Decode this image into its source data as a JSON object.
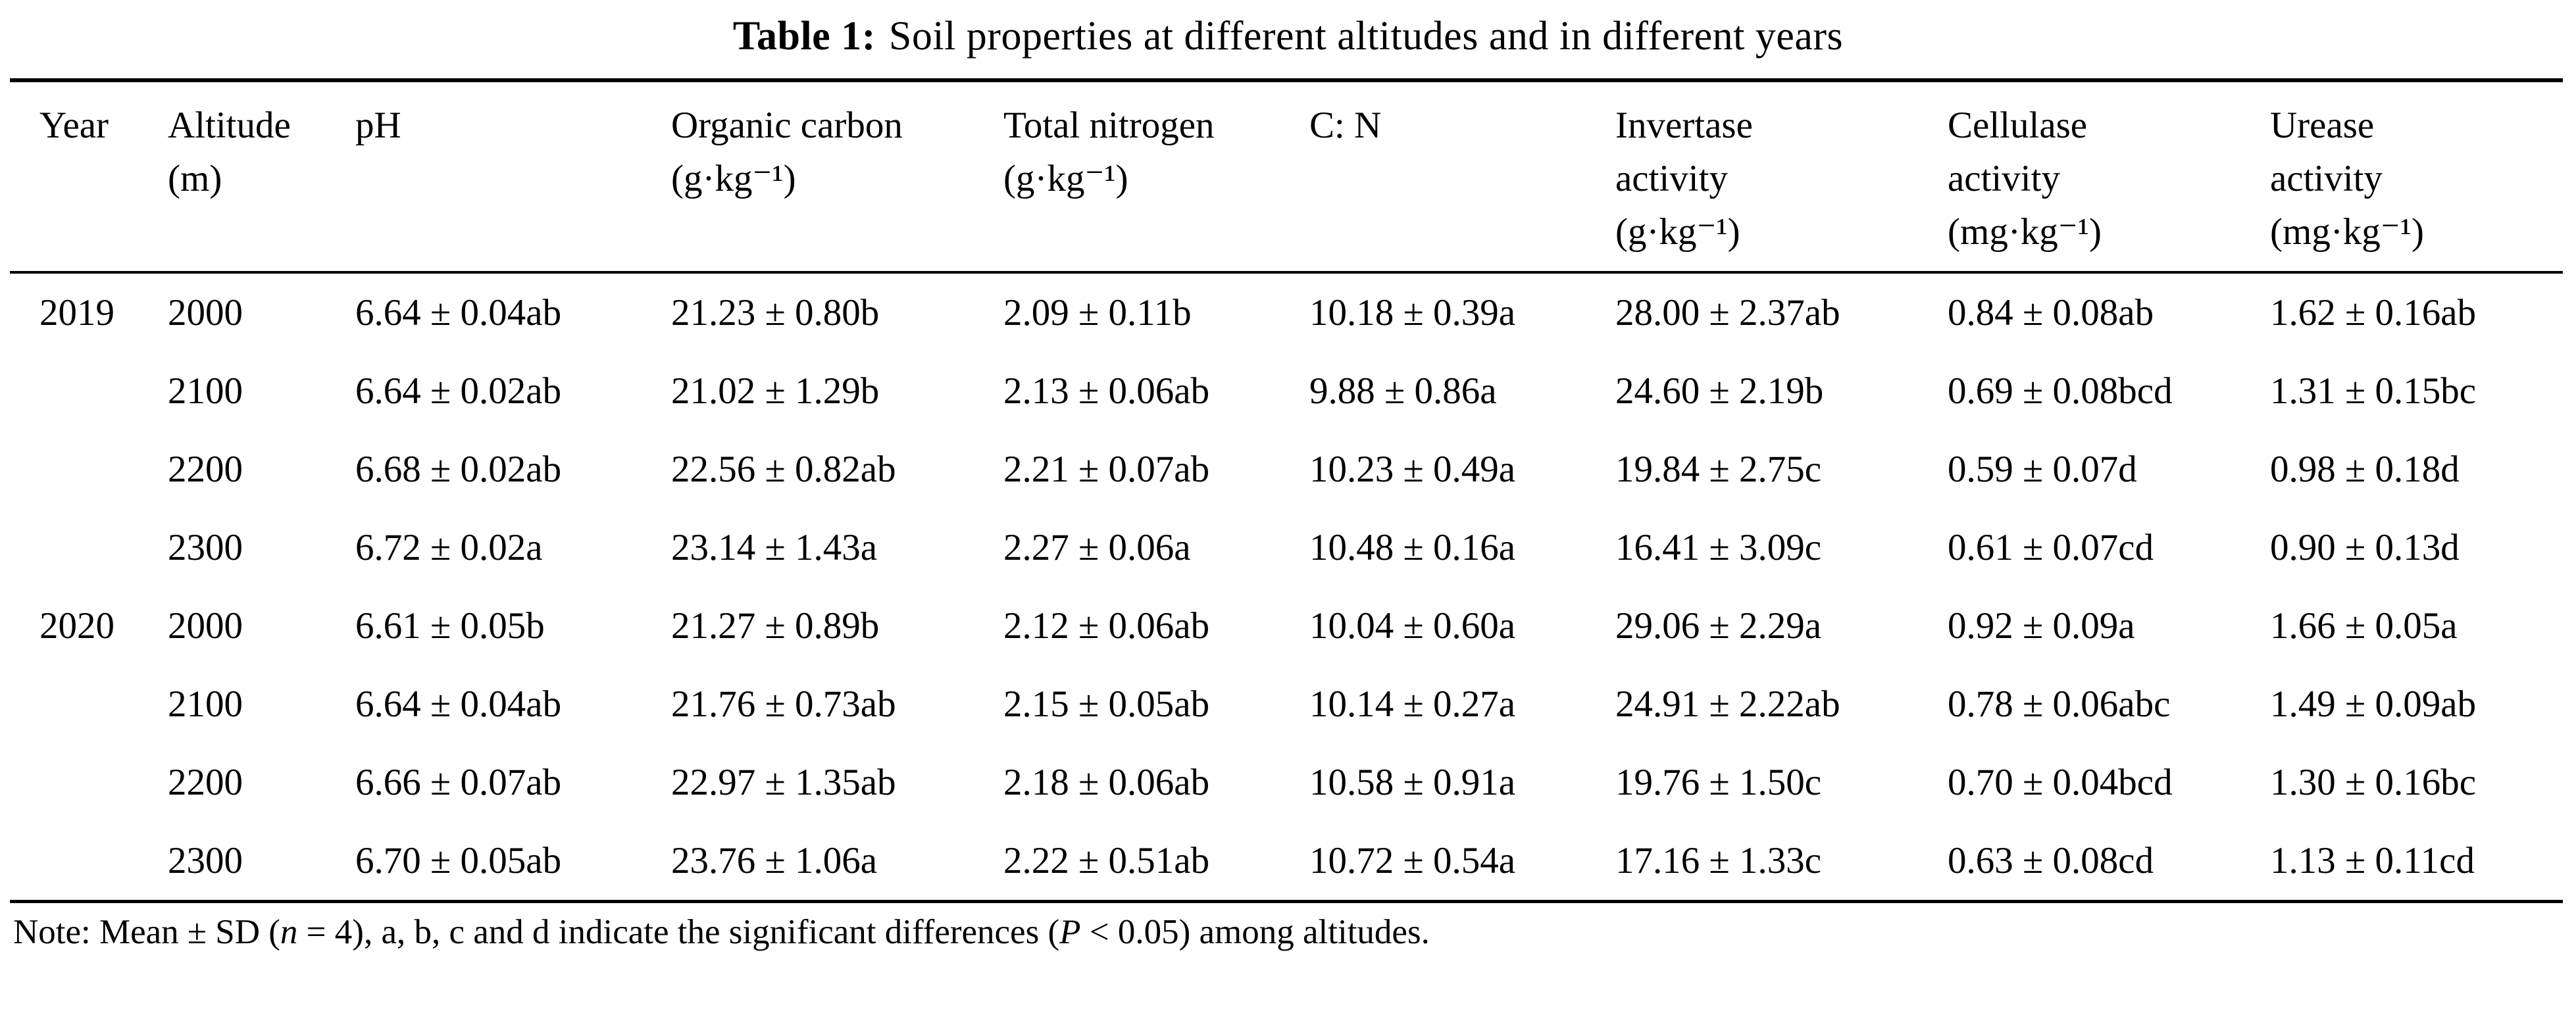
{
  "page": {
    "background_color": "#ffffff",
    "text_color": "#000000",
    "rule_color": "#000000"
  },
  "table": {
    "title_label": "Table 1:",
    "title_text": "Soil properties at different altitudes and in different years",
    "columns": [
      {
        "key": "year",
        "label": "Year"
      },
      {
        "key": "altitude",
        "label": "Altitude\n(m)"
      },
      {
        "key": "ph",
        "label": "pH"
      },
      {
        "key": "organic_carbon",
        "label": "Organic carbon\n(g·kg⁻¹)"
      },
      {
        "key": "total_nitrogen",
        "label": "Total nitrogen\n(g·kg⁻¹)"
      },
      {
        "key": "cn_ratio",
        "label": "C: N"
      },
      {
        "key": "invertase",
        "label": "Invertase\nactivity\n(g·kg⁻¹)"
      },
      {
        "key": "cellulase",
        "label": "Cellulase\nactivity\n(mg·kg⁻¹)"
      },
      {
        "key": "urease",
        "label": "Urease\nactivity\n(mg·kg⁻¹)"
      }
    ],
    "rows": [
      {
        "cells": [
          "2019",
          "2000",
          "6.64 ± 0.04ab",
          "21.23 ± 0.80b",
          "2.09 ± 0.11b",
          "10.18 ± 0.39a",
          "28.00 ± 2.37ab",
          "0.84 ± 0.08ab",
          "1.62 ± 0.16ab"
        ]
      },
      {
        "cells": [
          "",
          "2100",
          "6.64 ± 0.02ab",
          "21.02 ± 1.29b",
          "2.13 ± 0.06ab",
          "9.88 ± 0.86a",
          "24.60 ± 2.19b",
          "0.69 ± 0.08bcd",
          "1.31 ± 0.15bc"
        ]
      },
      {
        "cells": [
          "",
          "2200",
          "6.68 ± 0.02ab",
          "22.56 ± 0.82ab",
          "2.21 ± 0.07ab",
          "10.23 ± 0.49a",
          "19.84 ± 2.75c",
          "0.59 ± 0.07d",
          "0.98 ± 0.18d"
        ]
      },
      {
        "cells": [
          "",
          "2300",
          "6.72 ± 0.02a",
          "23.14 ± 1.43a",
          "2.27 ± 0.06a",
          "10.48 ± 0.16a",
          "16.41 ± 3.09c",
          "0.61 ± 0.07cd",
          "0.90 ± 0.13d"
        ]
      },
      {
        "cells": [
          "2020",
          "2000",
          "6.61 ± 0.05b",
          "21.27 ± 0.89b",
          "2.12 ± 0.06ab",
          "10.04 ± 0.60a",
          "29.06 ± 2.29a",
          "0.92 ± 0.09a",
          "1.66 ± 0.05a"
        ]
      },
      {
        "cells": [
          "",
          "2100",
          "6.64 ± 0.04ab",
          "21.76 ± 0.73ab",
          "2.15 ± 0.05ab",
          "10.14 ± 0.27a",
          "24.91 ± 2.22ab",
          "0.78 ± 0.06abc",
          "1.49 ± 0.09ab"
        ]
      },
      {
        "cells": [
          "",
          "2200",
          "6.66 ± 0.07ab",
          "22.97 ± 1.35ab",
          "2.18 ± 0.06ab",
          "10.58 ± 0.91a",
          "19.76 ± 1.50c",
          "0.70 ± 0.04bcd",
          "1.30 ± 0.16bc"
        ]
      },
      {
        "cells": [
          "",
          "2300",
          "6.70 ± 0.05ab",
          "23.76 ± 1.06a",
          "2.22 ± 0.51ab",
          "10.72 ± 0.54a",
          "17.16 ± 1.33c",
          "0.63 ± 0.08cd",
          "1.13 ± 0.11cd"
        ]
      }
    ],
    "note_segments": [
      {
        "text": "Note: Mean ± SD (",
        "italic": false
      },
      {
        "text": "n",
        "italic": true
      },
      {
        "text": " = 4), a, b, c and d indicate the significant differences (",
        "italic": false
      },
      {
        "text": "P",
        "italic": true
      },
      {
        "text": " < 0.05) among altitudes.",
        "italic": false
      }
    ]
  }
}
